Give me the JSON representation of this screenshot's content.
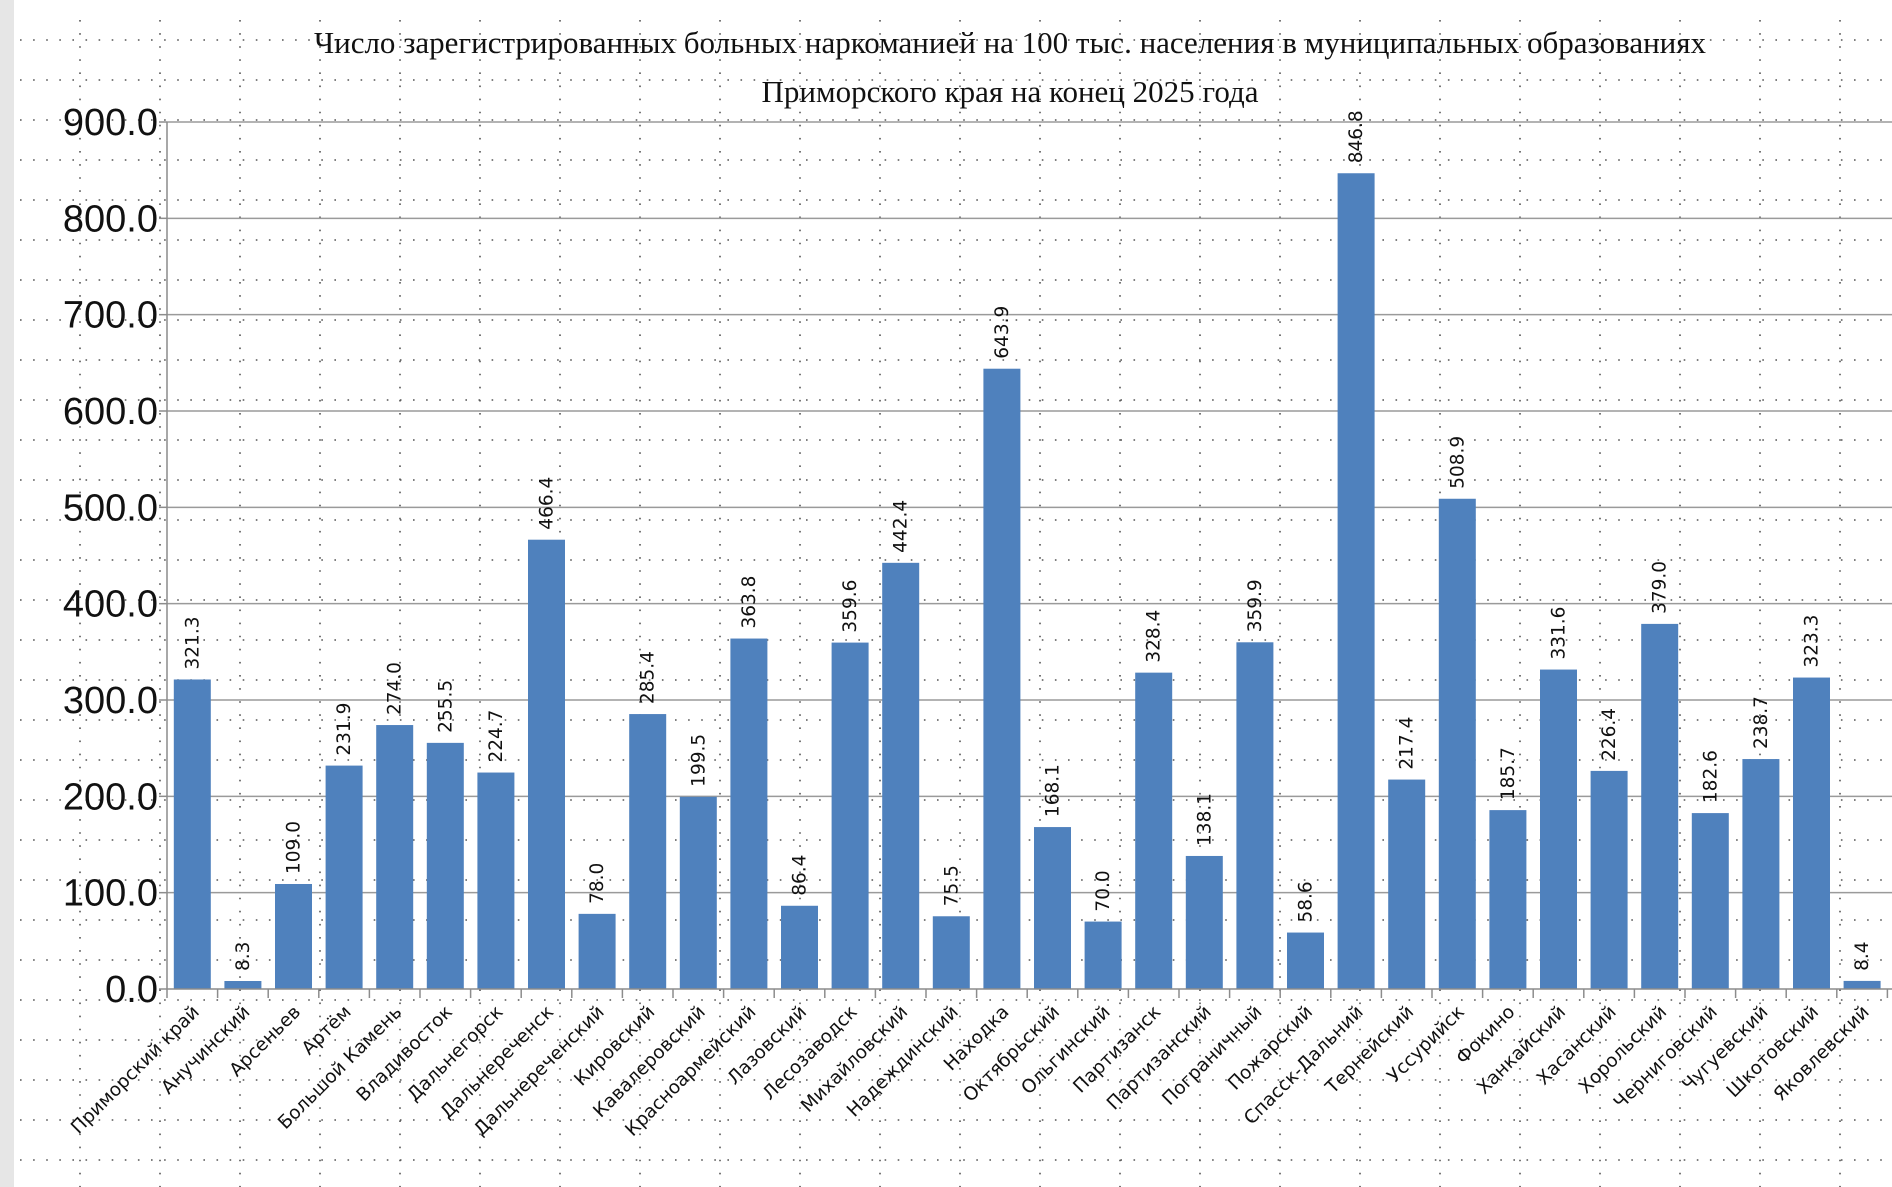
{
  "chart_data": {
    "type": "bar",
    "title": "Число зарегистрированных больных наркоманией на 100 тыс. населения в муниципальных образованиях Приморского края на конец 2025 года",
    "title_lines": [
      "Число зарегистрированных больных наркоманией на 100 тыс. населения в муниципальных образованиях",
      "Приморского края на конец 2025 года"
    ],
    "xlabel": "",
    "ylabel": "",
    "ylim": [
      0,
      900
    ],
    "yticks": [
      0,
      100,
      200,
      300,
      400,
      500,
      600,
      700,
      800,
      900
    ],
    "ytick_labels": [
      "0.0",
      "100.0",
      "200.0",
      "300.0",
      "400.0",
      "500.0",
      "600.0",
      "700.0",
      "800.0",
      "900.0"
    ],
    "grid": true,
    "bar_color": "#4f81bd",
    "categories": [
      "Приморский край",
      "Анучинский",
      "Арсеньев",
      "Артём",
      "Большой Камень",
      "Владивосток",
      "Дальнегорск",
      "Дальнереченск",
      "Дальнереченский",
      "Кировский",
      "Кавалеровский",
      "Красноармейский",
      "Лазовский",
      "Лесозаводск",
      "Михайловский",
      "Надеждинский",
      "Находка",
      "Октябрьский",
      "Ольгинский",
      "Партизанск",
      "Партизанский",
      "Пограничный",
      "Пожарский",
      "Спасск-Дальний",
      "Тернейский",
      "Уссурийск",
      "Фокино",
      "Ханкайский",
      "Хасанский",
      "Хорольский",
      "Черниговский",
      "Чугуевский",
      "Шкотовский",
      "Яковлевский"
    ],
    "values": [
      321.3,
      8.3,
      109.0,
      231.9,
      274.0,
      255.5,
      224.7,
      466.4,
      78.0,
      285.4,
      199.5,
      363.8,
      86.4,
      359.6,
      442.4,
      75.5,
      643.9,
      168.1,
      70.0,
      328.4,
      138.1,
      359.9,
      58.6,
      846.8,
      217.4,
      508.9,
      185.7,
      331.6,
      226.4,
      379.0,
      182.6,
      238.7,
      323.3,
      8.4
    ],
    "value_labels": [
      "321.3",
      "8.3",
      "109.0",
      "231.9",
      "274.0",
      "255.5",
      "224.7",
      "466.4",
      "78.0",
      "285.4",
      "199.5",
      "363.8",
      "86.4",
      "359.6",
      "442.4",
      "75.5",
      "643.9",
      "168.1",
      "70.0",
      "328.4",
      "138.1",
      "359.9",
      "58.6",
      "846.8",
      "217.4",
      "508.9",
      "185.7",
      "331.6",
      "226.4",
      "379.0",
      "182.6",
      "238.7",
      "323.3",
      "8.4"
    ]
  }
}
